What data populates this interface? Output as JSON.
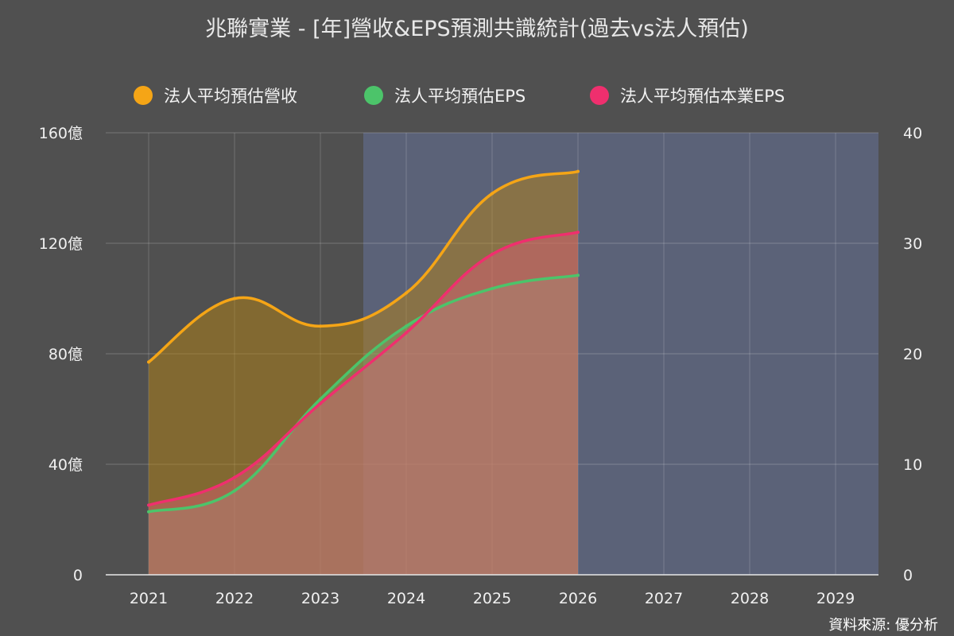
{
  "title": "兆聯實業 - [年]營收&EPS預測共識統計(過去vs法人預估)",
  "source": "資料來源: 優分析",
  "colors": {
    "revenue": "#f5a516",
    "eps": "#4cc46a",
    "core_eps": "#ef2f6e",
    "forecast_band": "#5b6278",
    "background": "#505050"
  },
  "legend": [
    {
      "label": "法人平均預估營收",
      "color": "#f5a516"
    },
    {
      "label": "法人平均預估EPS",
      "color": "#4cc46a"
    },
    {
      "label": "法人平均預估本業EPS",
      "color": "#ef2f6e"
    }
  ],
  "chart_data": {
    "type": "area",
    "categories": [
      "2021",
      "2022",
      "2023",
      "2024",
      "2025",
      "2026",
      "2027",
      "2028",
      "2029"
    ],
    "y_left": {
      "ylim": [
        0,
        160
      ],
      "ticks": [
        "0",
        "40億",
        "80億",
        "120億",
        "160億"
      ]
    },
    "y_right": {
      "ylim": [
        0,
        40
      ],
      "ticks": [
        "0",
        "10",
        "20",
        "30",
        "40"
      ]
    },
    "forecast_region": [
      "2024",
      "2029"
    ],
    "grid": true,
    "legend_position": "top",
    "series": [
      {
        "name": "法人平均預估營收",
        "axis": "left",
        "unit": "億",
        "values": [
          77,
          100,
          90,
          102,
          138,
          146,
          null,
          null,
          null
        ]
      },
      {
        "name": "法人平均預估EPS",
        "axis": "right",
        "values": [
          5.7,
          7.6,
          15.9,
          22.5,
          25.9,
          27.1,
          null,
          null,
          null
        ]
      },
      {
        "name": "法人平均預估本業EPS",
        "axis": "right",
        "values": [
          6.3,
          8.8,
          15.5,
          21.9,
          29.0,
          31.0,
          null,
          null,
          null
        ]
      }
    ]
  }
}
